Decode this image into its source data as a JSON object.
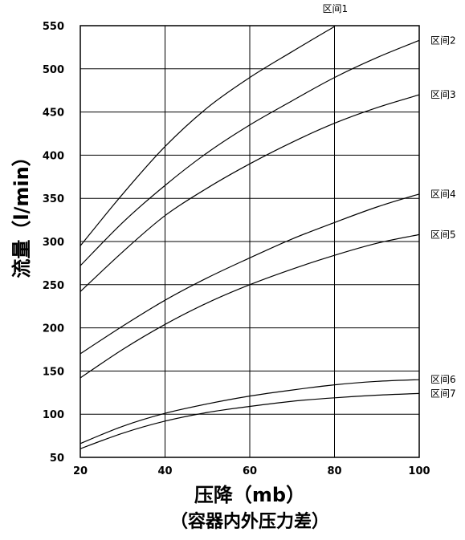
{
  "chart_data": {
    "type": "line",
    "xlabel": "压降（mb）",
    "xlabel_sub": "（容器内外压力差）",
    "ylabel": "流量（l/min）",
    "xlim": [
      20,
      100
    ],
    "ylim": [
      50,
      550
    ],
    "x_ticks": [
      20,
      40,
      60,
      80,
      100
    ],
    "y_ticks": [
      50,
      100,
      150,
      200,
      250,
      300,
      350,
      400,
      450,
      500,
      550
    ],
    "grid": true,
    "series": [
      {
        "name": "区间1",
        "points": [
          [
            20,
            295
          ],
          [
            30,
            355
          ],
          [
            40,
            410
          ],
          [
            50,
            455
          ],
          [
            60,
            490
          ],
          [
            70,
            520
          ],
          [
            80,
            549
          ]
        ]
      },
      {
        "name": "区间2",
        "points": [
          [
            20,
            272
          ],
          [
            30,
            322
          ],
          [
            40,
            365
          ],
          [
            50,
            403
          ],
          [
            60,
            435
          ],
          [
            70,
            463
          ],
          [
            80,
            490
          ],
          [
            90,
            513
          ],
          [
            100,
            533
          ]
        ]
      },
      {
        "name": "区间3",
        "points": [
          [
            20,
            242
          ],
          [
            30,
            288
          ],
          [
            40,
            330
          ],
          [
            50,
            362
          ],
          [
            60,
            390
          ],
          [
            70,
            415
          ],
          [
            80,
            437
          ],
          [
            90,
            455
          ],
          [
            100,
            470
          ]
        ]
      },
      {
        "name": "区间4",
        "points": [
          [
            20,
            170
          ],
          [
            30,
            202
          ],
          [
            40,
            232
          ],
          [
            50,
            258
          ],
          [
            60,
            281
          ],
          [
            70,
            303
          ],
          [
            80,
            322
          ],
          [
            90,
            340
          ],
          [
            100,
            355
          ]
        ]
      },
      {
        "name": "区间5",
        "points": [
          [
            20,
            142
          ],
          [
            30,
            175
          ],
          [
            40,
            204
          ],
          [
            50,
            229
          ],
          [
            60,
            250
          ],
          [
            70,
            268
          ],
          [
            80,
            284
          ],
          [
            90,
            298
          ],
          [
            100,
            308
          ]
        ]
      },
      {
        "name": "区间6",
        "points": [
          [
            20,
            66
          ],
          [
            30,
            86
          ],
          [
            40,
            101
          ],
          [
            50,
            112
          ],
          [
            60,
            121
          ],
          [
            70,
            128
          ],
          [
            80,
            134
          ],
          [
            90,
            138
          ],
          [
            100,
            140
          ]
        ]
      },
      {
        "name": "区间7",
        "points": [
          [
            20,
            60
          ],
          [
            30,
            78
          ],
          [
            40,
            92
          ],
          [
            50,
            102
          ],
          [
            60,
            109
          ],
          [
            70,
            115
          ],
          [
            80,
            119
          ],
          [
            90,
            122
          ],
          [
            100,
            124
          ]
        ]
      }
    ]
  }
}
